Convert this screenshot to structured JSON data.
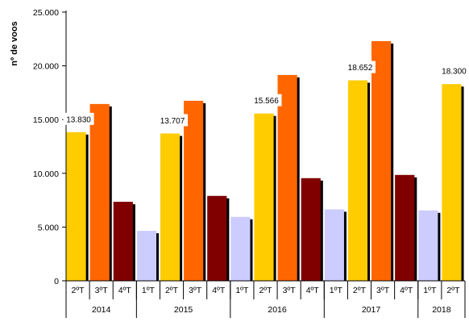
{
  "chart_data": {
    "type": "bar",
    "ylabel": "nº de voos",
    "ylim": [
      0,
      25000
    ],
    "yticks": [
      0,
      5000,
      10000,
      15000,
      20000,
      25000
    ],
    "ytick_labels": [
      "0",
      "5.000",
      "10.000",
      "15.000",
      "20.000",
      "25.000"
    ],
    "grid": false,
    "legend": "none",
    "bar_shadow": true,
    "quarter_colors": {
      "1ºT": "#ccccff",
      "2ºT": "#ffcc00",
      "3ºT": "#ff6600",
      "4ºT": "#800000"
    },
    "shadow_color": "#000000",
    "groups": [
      {
        "year": "2014",
        "bars": [
          {
            "quarter": "2ºT",
            "value": 13830,
            "label": "13.830"
          },
          {
            "quarter": "3ºT",
            "value": 16450
          },
          {
            "quarter": "4ºT",
            "value": 7350
          }
        ]
      },
      {
        "year": "2015",
        "bars": [
          {
            "quarter": "1ºT",
            "value": 4650
          },
          {
            "quarter": "2ºT",
            "value": 13707,
            "label": "13.707"
          },
          {
            "quarter": "3ºT",
            "value": 16750
          },
          {
            "quarter": "4ºT",
            "value": 7900
          }
        ]
      },
      {
        "year": "2016",
        "bars": [
          {
            "quarter": "1ºT",
            "value": 5950
          },
          {
            "quarter": "2ºT",
            "value": 15566,
            "label": "15.566"
          },
          {
            "quarter": "3ºT",
            "value": 19150
          },
          {
            "quarter": "4ºT",
            "value": 9550
          }
        ]
      },
      {
        "year": "2017",
        "bars": [
          {
            "quarter": "1ºT",
            "value": 6650
          },
          {
            "quarter": "2ºT",
            "value": 18652,
            "label": "18.652"
          },
          {
            "quarter": "3ºT",
            "value": 22300
          },
          {
            "quarter": "4ºT",
            "value": 9850
          }
        ]
      },
      {
        "year": "2018",
        "bars": [
          {
            "quarter": "1ºT",
            "value": 6550
          },
          {
            "quarter": "2ºT",
            "value": 18300,
            "label": "18.300"
          }
        ]
      }
    ]
  }
}
